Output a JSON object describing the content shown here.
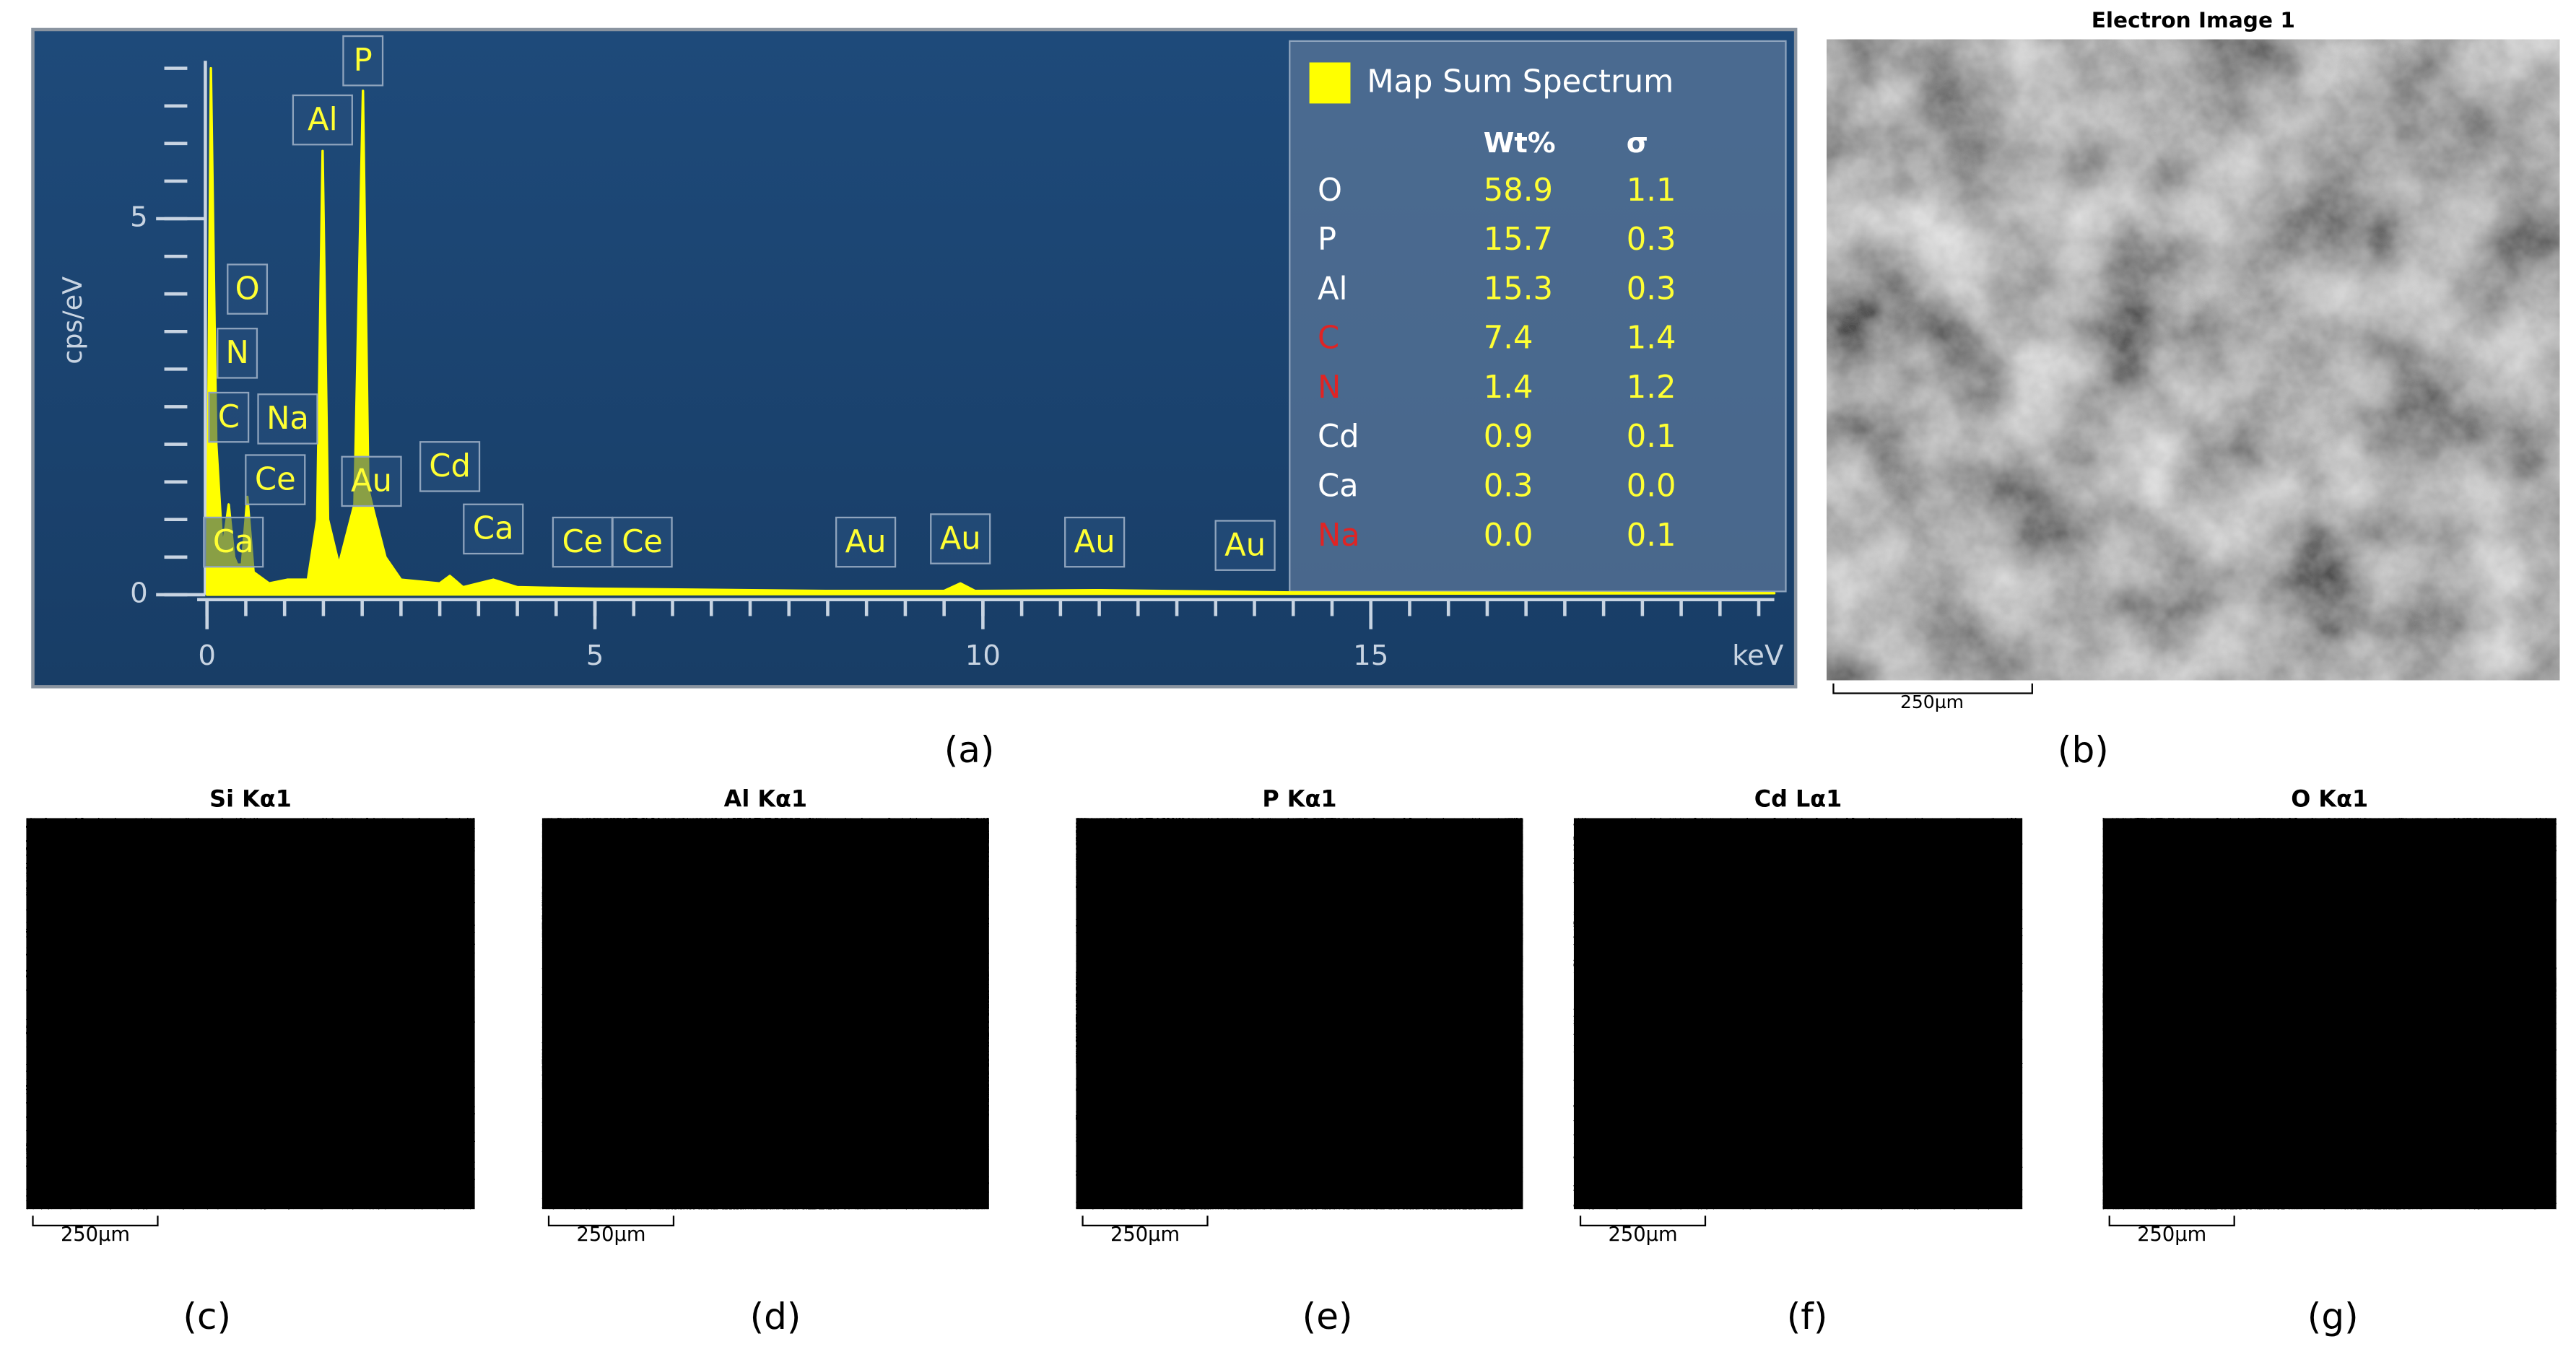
{
  "chart_data": {
    "type": "line",
    "y_label": "cps/eV",
    "x_label": "keV",
    "xlim": [
      0,
      20.2
    ],
    "xticks": [
      0,
      5,
      10,
      15
    ],
    "xminor": 0.5,
    "ylim": [
      0,
      7.1
    ],
    "yticks": [
      0,
      5
    ],
    "yminor": 0.5,
    "color": "#ffff00",
    "x": [
      0,
      0.05,
      0.12,
      0.2,
      0.28,
      0.35,
      0.39,
      0.45,
      0.52,
      0.6,
      0.8,
      1.04,
      1.3,
      1.42,
      1.49,
      1.56,
      1.7,
      1.9,
      2.01,
      2.08,
      2.15,
      2.3,
      2.5,
      3.0,
      3.13,
      3.3,
      3.69,
      4.0,
      5.0,
      8.0,
      9.5,
      9.71,
      9.9,
      11.44,
      14.0,
      20.2
    ],
    "values": [
      0,
      7.0,
      2.0,
      0.6,
      1.2,
      0.5,
      0.4,
      0.4,
      1.3,
      0.3,
      0.15,
      0.2,
      0.2,
      1.0,
      5.9,
      1.0,
      0.4,
      1.2,
      6.7,
      1.4,
      1.1,
      0.5,
      0.2,
      0.15,
      0.25,
      0.1,
      0.2,
      0.1,
      0.08,
      0.05,
      0.05,
      0.15,
      0.05,
      0.06,
      0.03,
      0.02
    ],
    "peaks": [
      {
        "label": "Ca",
        "energy": 0.34
      },
      {
        "label": "C",
        "energy": 0.28
      },
      {
        "label": "N",
        "energy": 0.39
      },
      {
        "label": "O",
        "energy": 0.52
      },
      {
        "label": "Ce",
        "energy": 0.88
      },
      {
        "label": "Na",
        "energy": 1.04
      },
      {
        "label": "Al",
        "energy": 1.49
      },
      {
        "label": "P",
        "energy": 2.01
      },
      {
        "label": "Au",
        "energy": 2.12
      },
      {
        "label": "Cd",
        "energy": 3.13
      },
      {
        "label": "Ca",
        "energy": 3.69
      },
      {
        "label": "Ce",
        "energy": 4.84
      },
      {
        "label": "Ce",
        "energy": 5.61
      },
      {
        "label": "Au",
        "energy": 8.49
      },
      {
        "label": "Au",
        "energy": 9.71
      },
      {
        "label": "Au",
        "energy": 11.44
      },
      {
        "label": "Au",
        "energy": 13.38
      }
    ],
    "legend": "Map Sum Spectrum",
    "table": {
      "headers": [
        "Wt%",
        "σ"
      ],
      "rows": [
        {
          "element": "O",
          "wt": "58.9",
          "sigma": "1.1",
          "color": "#ffffff"
        },
        {
          "element": "P",
          "wt": "15.7",
          "sigma": "0.3",
          "color": "#ffffff"
        },
        {
          "element": "Al",
          "wt": "15.3",
          "sigma": "0.3",
          "color": "#ffffff"
        },
        {
          "element": "C",
          "wt": "7.4",
          "sigma": "1.4",
          "color": "#e02424"
        },
        {
          "element": "N",
          "wt": "1.4",
          "sigma": "1.2",
          "color": "#e02424"
        },
        {
          "element": "Cd",
          "wt": "0.9",
          "sigma": "0.1",
          "color": "#ffffff"
        },
        {
          "element": "Ca",
          "wt": "0.3",
          "sigma": "0.0",
          "color": "#ffffff"
        },
        {
          "element": "Na",
          "wt": "0.0",
          "sigma": "0.1",
          "color": "#e02424"
        }
      ]
    }
  },
  "electron_image": {
    "title": "Electron Image 1",
    "scale_bar": "250µm"
  },
  "maps": [
    {
      "title": "Si Kα1",
      "scale_bar": "250µm"
    },
    {
      "title": "Al Kα1",
      "scale_bar": "250µm"
    },
    {
      "title": "P Kα1",
      "scale_bar": "250µm"
    },
    {
      "title": "Cd Lα1",
      "scale_bar": "250µm"
    },
    {
      "title": "O Kα1",
      "scale_bar": "250µm"
    }
  ],
  "panel_labels": [
    "(a)",
    "(b)",
    "(c)",
    "(d)",
    "(e)",
    "(f)",
    "(g)"
  ]
}
